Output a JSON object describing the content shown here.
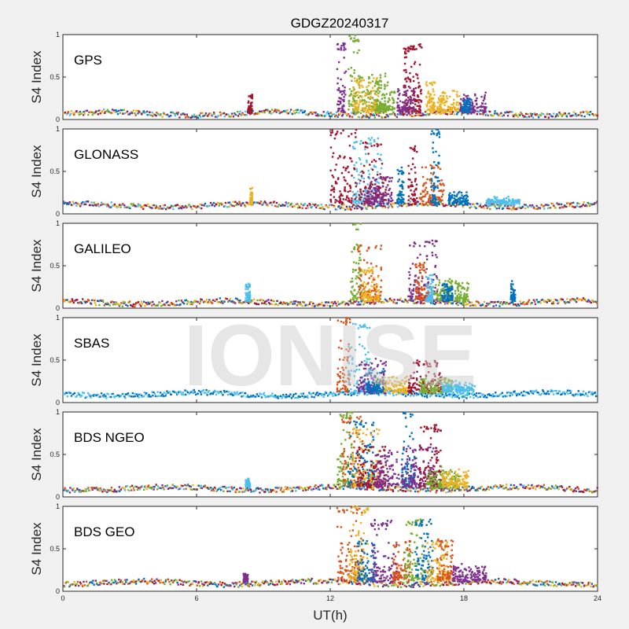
{
  "watermark": "IONISE",
  "chart_data": {
    "type": "scatter",
    "title": "GDGZ20240317",
    "xlabel": "UT(h)",
    "ylabel": "S4 Index",
    "xlim": [
      0,
      24
    ],
    "ylim": [
      0,
      1
    ],
    "xticks": [
      0,
      6,
      12,
      18,
      24
    ],
    "yticks": [
      0,
      0.5,
      1
    ],
    "ytick_labels": [
      "0",
      "0.5",
      "1"
    ],
    "series_colors": [
      "#0072BD",
      "#D95319",
      "#EDB120",
      "#7E2F8E",
      "#77AC30",
      "#4DBEEE",
      "#A2142F"
    ],
    "panels": [
      {
        "label": "GPS",
        "baseline": 0.07,
        "baseline_colors": [
          "#0072BD",
          "#D95319",
          "#EDB120",
          "#7E2F8E",
          "#77AC30",
          "#4DBEEE",
          "#A2142F"
        ],
        "bursts": [
          {
            "x": [
              12.8,
              13.3
            ],
            "peak": 1.0,
            "color": "#77AC30"
          },
          {
            "x": [
              12.3,
              12.7
            ],
            "peak": 0.9,
            "color": "#7E2F8E"
          },
          {
            "x": [
              13.3,
              14.5
            ],
            "peak": 0.55,
            "color": "#77AC30"
          },
          {
            "x": [
              13.0,
              14.2
            ],
            "peak": 0.5,
            "color": "#EDB120"
          },
          {
            "x": [
              14.0,
              14.9
            ],
            "peak": 0.45,
            "color": "#77AC30"
          },
          {
            "x": [
              15.3,
              15.6
            ],
            "peak": 0.85,
            "color": "#A2142F"
          },
          {
            "x": [
              15.6,
              16.1
            ],
            "peak": 0.9,
            "color": "#A2142F"
          },
          {
            "x": [
              15.0,
              15.8
            ],
            "peak": 0.4,
            "color": "#7E2F8E"
          },
          {
            "x": [
              16.8,
              17.8
            ],
            "peak": 0.35,
            "color": "#EDB120"
          },
          {
            "x": [
              16.3,
              16.7
            ],
            "peak": 0.45,
            "color": "#EDB120"
          },
          {
            "x": [
              17.8,
              19.0
            ],
            "peak": 0.3,
            "color": "#7E2F8E"
          },
          {
            "x": [
              8.3,
              8.5
            ],
            "peak": 0.3,
            "color": "#A2142F"
          },
          {
            "x": [
              17.9,
              18.3
            ],
            "peak": 0.25,
            "color": "#0072BD"
          }
        ]
      },
      {
        "label": "GLONASS",
        "baseline": 0.1,
        "baseline_colors": [
          "#0072BD",
          "#D95319",
          "#EDB120",
          "#4DBEEE",
          "#77AC30",
          "#A2142F",
          "#7E2F8E"
        ],
        "bursts": [
          {
            "x": [
              12.0,
              13.2
            ],
            "peak": 1.0,
            "color": "#A2142F"
          },
          {
            "x": [
              13.0,
              14.3
            ],
            "peak": 0.9,
            "color": "#4DBEEE"
          },
          {
            "x": [
              13.3,
              14.5
            ],
            "peak": 0.85,
            "color": "#A2142F"
          },
          {
            "x": [
              13.5,
              14.8
            ],
            "peak": 0.45,
            "color": "#7E2F8E"
          },
          {
            "x": [
              15.0,
              15.3
            ],
            "peak": 0.55,
            "color": "#0072BD"
          },
          {
            "x": [
              15.5,
              15.9
            ],
            "peak": 0.8,
            "color": "#A2142F"
          },
          {
            "x": [
              16.0,
              17.1
            ],
            "peak": 0.6,
            "color": "#D95319"
          },
          {
            "x": [
              16.5,
              16.9
            ],
            "peak": 1.0,
            "color": "#0072BD"
          },
          {
            "x": [
              17.3,
              18.2
            ],
            "peak": 0.25,
            "color": "#0072BD"
          },
          {
            "x": [
              8.4,
              8.5
            ],
            "peak": 0.3,
            "color": "#EDB120"
          },
          {
            "x": [
              19.0,
              20.5
            ],
            "peak": 0.18,
            "color": "#4DBEEE"
          }
        ]
      },
      {
        "label": "GALILEO",
        "baseline": 0.07,
        "baseline_colors": [
          "#0072BD",
          "#D95319",
          "#EDB120",
          "#7E2F8E",
          "#A2142F",
          "#77AC30"
        ],
        "bursts": [
          {
            "x": [
              12.9,
              13.4
            ],
            "peak": 1.0,
            "color": "#77AC30"
          },
          {
            "x": [
              13.2,
              14.3
            ],
            "peak": 0.75,
            "color": "#D95319"
          },
          {
            "x": [
              13.4,
              14.2
            ],
            "peak": 0.5,
            "color": "#EDB120"
          },
          {
            "x": [
              15.5,
              16.8
            ],
            "peak": 0.8,
            "color": "#7E2F8E"
          },
          {
            "x": [
              15.8,
              16.4
            ],
            "peak": 0.55,
            "color": "#D95319"
          },
          {
            "x": [
              16.5,
              17.5
            ],
            "peak": 0.35,
            "color": "#77AC30"
          },
          {
            "x": [
              17.0,
              17.5
            ],
            "peak": 0.3,
            "color": "#0072BD"
          },
          {
            "x": [
              17.6,
              18.2
            ],
            "peak": 0.3,
            "color": "#77AC30"
          },
          {
            "x": [
              8.2,
              8.4
            ],
            "peak": 0.3,
            "color": "#4DBEEE"
          },
          {
            "x": [
              20.1,
              20.3
            ],
            "peak": 0.3,
            "color": "#0072BD"
          },
          {
            "x": [
              16.3,
              16.6
            ],
            "peak": 0.4,
            "color": "#4DBEEE"
          }
        ]
      },
      {
        "label": "SBAS",
        "baseline": 0.1,
        "baseline_colors": [
          "#0072BD",
          "#4DBEEE",
          "#0072BD",
          "#4DBEEE"
        ],
        "bursts": [
          {
            "x": [
              12.3,
              12.9
            ],
            "peak": 1.0,
            "color": "#D95319"
          },
          {
            "x": [
              12.8,
              13.8
            ],
            "peak": 0.95,
            "color": "#4DBEEE"
          },
          {
            "x": [
              13.2,
              14.5
            ],
            "peak": 0.5,
            "color": "#7E2F8E"
          },
          {
            "x": [
              14.0,
              15.5
            ],
            "peak": 0.3,
            "color": "#EDB120"
          },
          {
            "x": [
              15.5,
              17.0
            ],
            "peak": 0.5,
            "color": "#A2142F"
          },
          {
            "x": [
              16.0,
              17.5
            ],
            "peak": 0.3,
            "color": "#77AC30"
          },
          {
            "x": [
              17.0,
              18.5
            ],
            "peak": 0.25,
            "color": "#4DBEEE"
          },
          {
            "x": [
              13.6,
              14.4
            ],
            "peak": 0.4,
            "color": "#0072BD"
          }
        ]
      },
      {
        "label": "BDS NGEO",
        "baseline": 0.1,
        "baseline_colors": [
          "#0072BD",
          "#D95319",
          "#A2142F",
          "#4DBEEE",
          "#7E2F8E",
          "#EDB120",
          "#77AC30"
        ],
        "bursts": [
          {
            "x": [
              12.3,
              13.0
            ],
            "peak": 1.0,
            "color": "#77AC30"
          },
          {
            "x": [
              12.5,
              13.5
            ],
            "peak": 0.95,
            "color": "#D95319"
          },
          {
            "x": [
              12.8,
              14.0
            ],
            "peak": 0.9,
            "color": "#0072BD"
          },
          {
            "x": [
              13.0,
              14.2
            ],
            "peak": 0.8,
            "color": "#EDB120"
          },
          {
            "x": [
              13.2,
              14.5
            ],
            "peak": 0.6,
            "color": "#A2142F"
          },
          {
            "x": [
              14.0,
              15.0
            ],
            "peak": 0.55,
            "color": "#7E2F8E"
          },
          {
            "x": [
              15.2,
              15.8
            ],
            "peak": 1.0,
            "color": "#0072BD"
          },
          {
            "x": [
              15.0,
              16.8
            ],
            "peak": 0.6,
            "color": "#7E2F8E"
          },
          {
            "x": [
              16.0,
              17.0
            ],
            "peak": 0.85,
            "color": "#A2142F"
          },
          {
            "x": [
              16.3,
              17.8
            ],
            "peak": 0.35,
            "color": "#77AC30"
          },
          {
            "x": [
              17.0,
              18.2
            ],
            "peak": 0.3,
            "color": "#EDB120"
          },
          {
            "x": [
              8.2,
              8.4
            ],
            "peak": 0.2,
            "color": "#4DBEEE"
          }
        ]
      },
      {
        "label": "BDS GEO",
        "baseline": 0.1,
        "baseline_colors": [
          "#7E2F8E",
          "#A2142F",
          "#EDB120",
          "#D95319",
          "#0072BD",
          "#77AC30"
        ],
        "bursts": [
          {
            "x": [
              12.3,
              13.5
            ],
            "peak": 1.0,
            "color": "#D95319"
          },
          {
            "x": [
              12.8,
              13.7
            ],
            "peak": 1.0,
            "color": "#EDB120"
          },
          {
            "x": [
              13.2,
              14.0
            ],
            "peak": 0.6,
            "color": "#0072BD"
          },
          {
            "x": [
              13.8,
              15.0
            ],
            "peak": 0.85,
            "color": "#7E2F8E"
          },
          {
            "x": [
              14.8,
              15.6
            ],
            "peak": 0.6,
            "color": "#D95319"
          },
          {
            "x": [
              15.3,
              16.2
            ],
            "peak": 0.85,
            "color": "#77AC30"
          },
          {
            "x": [
              15.8,
              16.6
            ],
            "peak": 0.85,
            "color": "#0072BD"
          },
          {
            "x": [
              16.3,
              17.3
            ],
            "peak": 0.6,
            "color": "#EDB120"
          },
          {
            "x": [
              16.8,
              17.5
            ],
            "peak": 0.6,
            "color": "#D95319"
          },
          {
            "x": [
              17.5,
              19.0
            ],
            "peak": 0.3,
            "color": "#7E2F8E"
          },
          {
            "x": [
              8.1,
              8.3
            ],
            "peak": 0.2,
            "color": "#7E2F8E"
          }
        ]
      }
    ]
  }
}
